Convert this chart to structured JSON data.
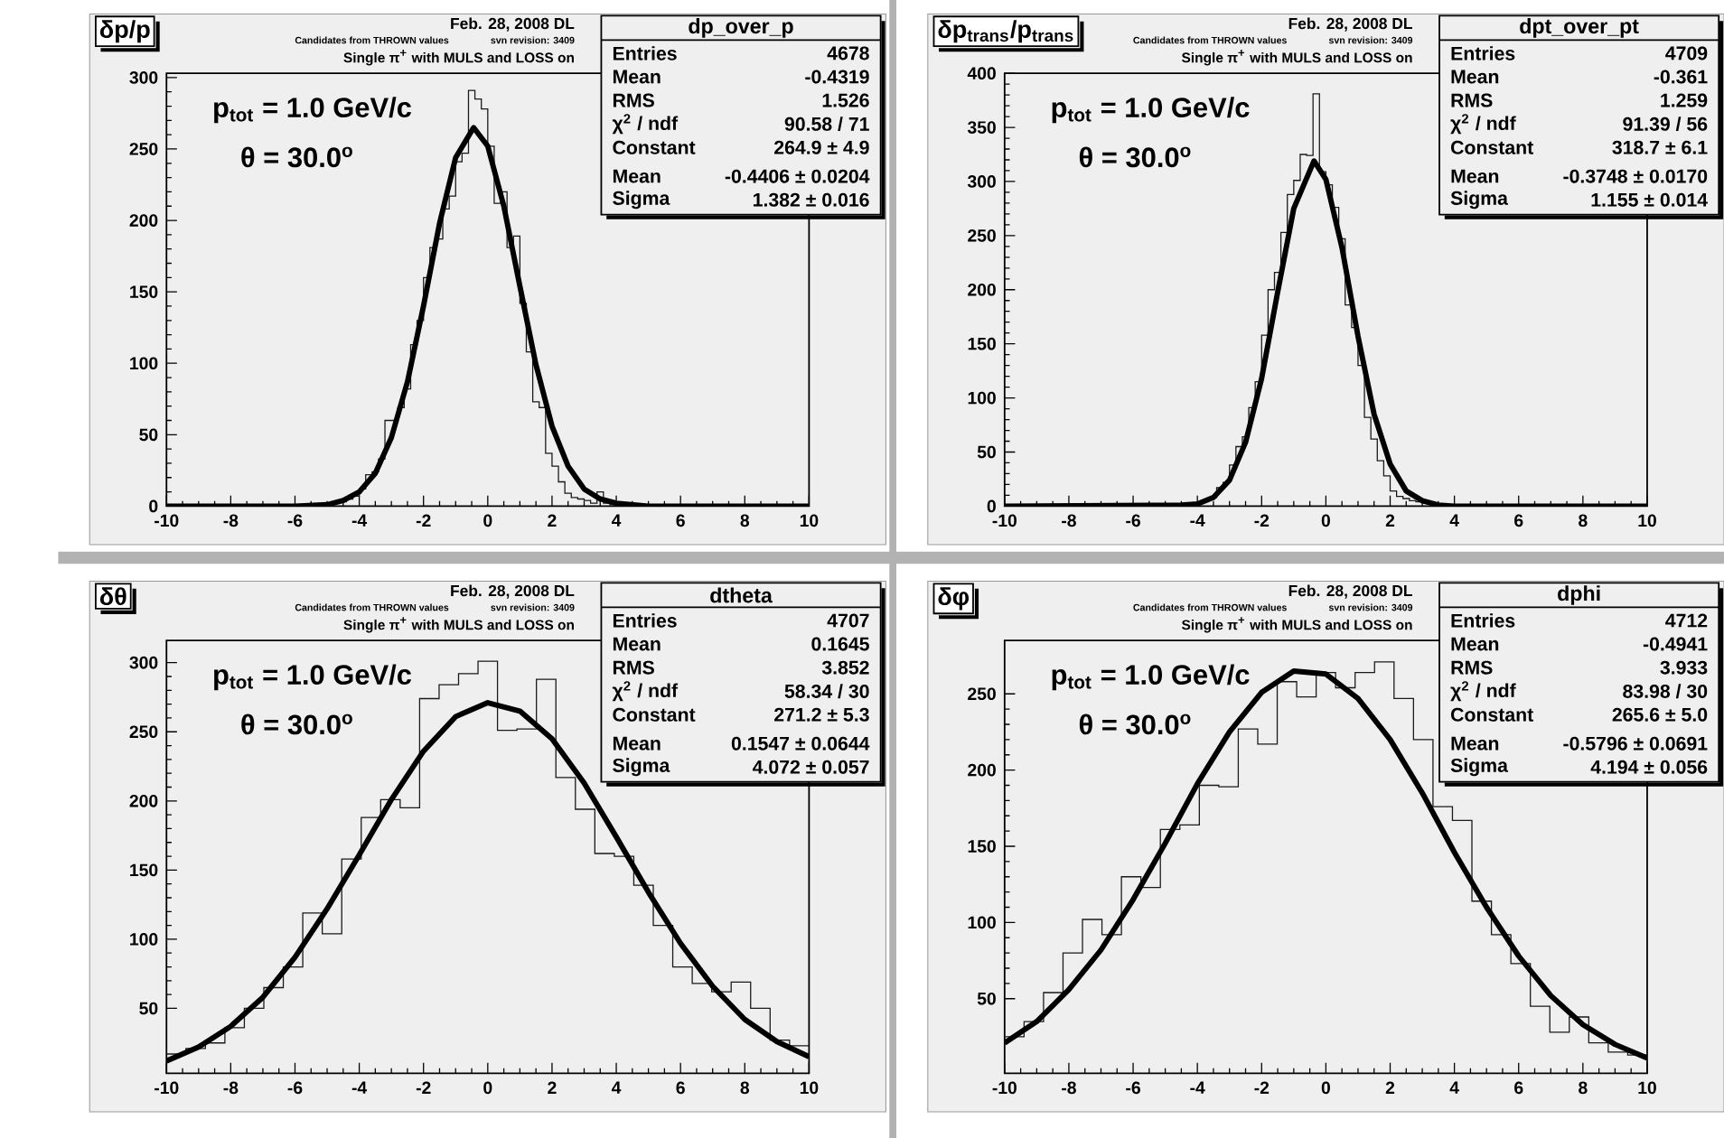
{
  "chart_data": [
    {
      "type": "histogram",
      "title": "δp/p",
      "xlim": [
        -10,
        10
      ],
      "ylim": [
        0,
        303
      ],
      "xticks": [
        -10,
        -8,
        -6,
        -4,
        -2,
        0,
        2,
        4,
        6,
        8,
        10
      ],
      "yticks": [
        0,
        50,
        100,
        150,
        200,
        250,
        300
      ],
      "series": [
        {
          "color": "#1a1a1a",
          "bins": [
            -10,
            -9.8,
            -9.6,
            -9.4,
            -9.2,
            -9,
            -8.8,
            -8.6,
            -8.4,
            -8.2,
            -8,
            -7.8,
            -7.6,
            -7.4,
            -7.2,
            -7,
            -6.8,
            -6.6,
            -6.4,
            -6.2,
            -6,
            -5.8,
            -5.6,
            -5.4,
            -5.2,
            -5,
            -4.8,
            -4.6,
            -4.4,
            -4.2,
            -4,
            -3.8,
            -3.6,
            -3.4,
            -3.2,
            -3,
            -2.8,
            -2.6,
            -2.4,
            -2.2,
            -2,
            -1.8,
            -1.6,
            -1.4,
            -1.2,
            -1,
            -0.8,
            -0.6,
            -0.4,
            -0.2,
            0,
            0.2,
            0.4,
            0.6,
            0.8,
            1,
            1.2,
            1.4,
            1.6,
            1.8,
            2,
            2.2,
            2.4,
            2.6,
            2.8,
            3,
            3.2,
            3.4,
            3.6,
            3.8,
            4,
            4.2,
            4.4,
            4.6,
            4.8,
            5,
            5.2,
            5.4,
            5.6,
            5.8,
            6,
            6.2,
            6.4,
            6.6,
            6.8,
            7,
            7.2,
            7.4,
            7.6,
            7.8,
            8,
            8.2,
            8.4,
            8.6,
            8.8,
            9,
            9.2,
            9.4,
            9.6,
            9.8,
            10
          ],
          "values": [
            0,
            0,
            0,
            0,
            0,
            0,
            0,
            0,
            1,
            0,
            0,
            0,
            0,
            0,
            1,
            0,
            0,
            0,
            0,
            0,
            1,
            0,
            0,
            1,
            1,
            2,
            2,
            3,
            5,
            7,
            12,
            22,
            24,
            33,
            60,
            60,
            69,
            82,
            113,
            130,
            160,
            181,
            187,
            208,
            217,
            241,
            247,
            291,
            285,
            278,
            252,
            212,
            220,
            181,
            189,
            142,
            108,
            73,
            69,
            37,
            28,
            17,
            9,
            6,
            5,
            4,
            2,
            10,
            2,
            1,
            1,
            0,
            1,
            1,
            0,
            0,
            1,
            0,
            0,
            0,
            0,
            0,
            1,
            1,
            0,
            0,
            0,
            0,
            0,
            0,
            1,
            0,
            1,
            0,
            0,
            0,
            0,
            0,
            0,
            0
          ]
        },
        {
          "type": "line",
          "color": "#000000",
          "x": [
            -10,
            -6,
            -5,
            -4.5,
            -4,
            -3.5,
            -3,
            -2.5,
            -2,
            -1.5,
            -1,
            -0.44,
            0,
            0.5,
            1,
            1.5,
            2,
            2.5,
            3,
            3.5,
            4,
            5,
            10
          ],
          "values": [
            0,
            0,
            1,
            4,
            10,
            23,
            48,
            87,
            140,
            198,
            244,
            265,
            252,
            210,
            154,
            99,
            56,
            28,
            12,
            5,
            2,
            0,
            0
          ]
        }
      ],
      "annotations": [
        "Feb. 28, 2008 DL",
        "Candidates from THROWN values",
        "svn revision: 3409",
        "Single π$^{+}$ with MULS and LOSS on",
        "p$_{tot}$ = 1.0 GeV/c",
        "θ = 30.0$^{o}$",
        "dp_over_p",
        "Entries",
        "4678",
        "Mean",
        "-0.4319",
        "RMS",
        "1.526",
        "χ$^{2}$ / ndf",
        "90.58 / 71",
        "Constant",
        "264.9 ± 4.9",
        "Mean",
        "-0.4406 ± 0.0204",
        "Sigma",
        "1.382 ± 0.016"
      ]
    },
    {
      "type": "histogram",
      "title": "δp$_{trans}$/p$_{trans}$",
      "xlim": [
        -10,
        10
      ],
      "ylim": [
        0,
        400
      ],
      "xticks": [
        -10,
        -8,
        -6,
        -4,
        -2,
        0,
        2,
        4,
        6,
        8,
        10
      ],
      "yticks": [
        0,
        50,
        100,
        150,
        200,
        250,
        300,
        350,
        400
      ],
      "series": [
        {
          "color": "#1a1a1a",
          "bins": [
            -10,
            -9.8,
            -9.6,
            -9.4,
            -9.2,
            -9,
            -8.8,
            -8.6,
            -8.4,
            -8.2,
            -8,
            -7.8,
            -7.6,
            -7.4,
            -7.2,
            -7,
            -6.8,
            -6.6,
            -6.4,
            -6.2,
            -6,
            -5.8,
            -5.6,
            -5.4,
            -5.2,
            -5,
            -4.8,
            -4.6,
            -4.4,
            -4.2,
            -4,
            -3.8,
            -3.6,
            -3.4,
            -3.2,
            -3,
            -2.8,
            -2.6,
            -2.4,
            -2.2,
            -2,
            -1.8,
            -1.6,
            -1.4,
            -1.2,
            -1,
            -0.8,
            -0.6,
            -0.4,
            -0.2,
            0,
            0.2,
            0.4,
            0.6,
            0.8,
            1,
            1.2,
            1.4,
            1.6,
            1.8,
            2,
            2.2,
            2.4,
            2.6,
            2.8,
            3,
            3.2,
            3.4,
            3.6,
            3.8,
            4,
            4.2,
            4.4,
            4.6,
            4.8,
            5,
            5.2,
            5.4,
            5.6,
            5.8,
            6,
            6.2,
            6.4,
            6.6,
            6.8,
            7,
            7.2,
            7.4,
            7.6,
            7.8,
            8,
            8.2,
            8.4,
            8.6,
            8.8,
            9,
            9.2,
            9.4,
            9.6,
            9.8,
            10
          ],
          "values": [
            0,
            0,
            0,
            0,
            0,
            0,
            0,
            0,
            0,
            0,
            0,
            0,
            0,
            0,
            0,
            0,
            0,
            0,
            0,
            0,
            0,
            0,
            0,
            0,
            0,
            1,
            0,
            1,
            2,
            2,
            4,
            5,
            8,
            17,
            22,
            38,
            55,
            64,
            91,
            115,
            158,
            200,
            216,
            253,
            288,
            301,
            325,
            324,
            381,
            309,
            297,
            276,
            247,
            186,
            165,
            130,
            82,
            62,
            42,
            28,
            14,
            9,
            7,
            5,
            4,
            3,
            2,
            1,
            1,
            0,
            1,
            0,
            0,
            0,
            0,
            1,
            0,
            0,
            0,
            0,
            0,
            0,
            0,
            0,
            0,
            0,
            0,
            0,
            0,
            0,
            0,
            0,
            0,
            0,
            0,
            0,
            0,
            0,
            0,
            0
          ]
        },
        {
          "type": "line",
          "color": "#000000",
          "x": [
            -10,
            -4.5,
            -4,
            -3.5,
            -3,
            -2.5,
            -2,
            -1.5,
            -1,
            -0.37,
            0,
            0.5,
            1,
            1.5,
            2,
            2.5,
            3,
            3.5,
            4,
            10
          ],
          "values": [
            0,
            1,
            2,
            8,
            24,
            59,
            118,
            198,
            275,
            319,
            302,
            239,
            157,
            85,
            39,
            14,
            5,
            1,
            0,
            0
          ]
        }
      ],
      "annotations": [
        "Feb. 28, 2008 DL",
        "Candidates from THROWN values",
        "svn revision: 3409",
        "Single π$^{+}$ with MULS and LOSS on",
        "p$_{tot}$ = 1.0 GeV/c",
        "θ = 30.0$^{o}$",
        "dpt_over_pt",
        "Entries",
        "4709",
        "Mean",
        "-0.361",
        "RMS",
        "1.259",
        "χ$^{2}$ / ndf",
        "91.39 / 56",
        "Constant",
        "318.7 ± 6.1",
        "Mean",
        "-0.3748 ± 0.0170",
        "Sigma",
        "1.155 ± 0.014"
      ]
    },
    {
      "type": "histogram",
      "title": "δθ",
      "xlim": [
        -10,
        10
      ],
      "ylim": [
        3,
        316
      ],
      "xticks": [
        -10,
        -8,
        -6,
        -4,
        -2,
        0,
        2,
        4,
        6,
        8,
        10
      ],
      "yticks": [
        50,
        100,
        150,
        200,
        250,
        300
      ],
      "series": [
        {
          "color": "#1a1a1a",
          "bins": [
            -10,
            -9.394,
            -8.788,
            -8.182,
            -7.576,
            -6.97,
            -6.364,
            -5.758,
            -5.152,
            -4.545,
            -3.939,
            -3.333,
            -2.727,
            -2.121,
            -1.515,
            -0.909,
            -0.303,
            0.303,
            0.909,
            1.515,
            2.121,
            2.727,
            3.333,
            3.939,
            4.545,
            5.152,
            5.758,
            6.364,
            6.97,
            7.576,
            8.182,
            8.788,
            9.394,
            10
          ],
          "values": [
            17,
            21,
            25,
            36,
            50,
            65,
            80,
            119,
            104,
            158,
            188,
            201,
            195,
            274,
            284,
            292,
            301,
            251,
            252,
            288,
            217,
            194,
            162,
            160,
            139,
            110,
            80,
            68,
            62,
            69,
            50,
            27,
            23
          ]
        },
        {
          "type": "line",
          "color": "#000000",
          "x": [
            -10,
            -9,
            -8,
            -7,
            -6,
            -5,
            -4,
            -3,
            -2,
            -1,
            0,
            1,
            2,
            3,
            4,
            5,
            6,
            7,
            8,
            9,
            10
          ],
          "values": [
            12,
            22,
            37,
            58,
            87,
            122,
            161,
            201,
            236,
            261,
            271,
            265,
            245,
            213,
            174,
            134,
            97,
            66,
            42,
            26,
            15
          ]
        }
      ],
      "annotations": [
        "Feb. 28, 2008 DL",
        "Candidates from THROWN values",
        "svn revision: 3409",
        "Single π$^{+}$ with MULS and LOSS on",
        "p$_{tot}$ = 1.0 GeV/c",
        "θ = 30.0$^{o}$",
        "dtheta",
        "Entries",
        "4707",
        "Mean",
        "0.1645",
        "RMS",
        "3.852",
        "χ$^{2}$ / ndf",
        "58.34 / 30",
        "Constant",
        "271.2 ± 5.3",
        "Mean",
        "0.1547 ± 0.0644",
        "Sigma",
        "4.072 ± 0.057"
      ]
    },
    {
      "type": "histogram",
      "title": "δφ",
      "xlim": [
        -10,
        10
      ],
      "ylim": [
        1,
        285
      ],
      "xticks": [
        -10,
        -8,
        -6,
        -4,
        -2,
        0,
        2,
        4,
        6,
        8,
        10
      ],
      "yticks": [
        50,
        100,
        150,
        200,
        250
      ],
      "series": [
        {
          "color": "#1a1a1a",
          "bins": [
            -10,
            -9.394,
            -8.788,
            -8.182,
            -7.576,
            -6.97,
            -6.364,
            -5.758,
            -5.152,
            -4.545,
            -3.939,
            -3.333,
            -2.727,
            -2.121,
            -1.515,
            -0.909,
            -0.303,
            0.303,
            0.909,
            1.515,
            2.121,
            2.727,
            3.333,
            3.939,
            4.545,
            5.152,
            5.758,
            6.364,
            6.97,
            7.576,
            8.182,
            8.788,
            9.394,
            10
          ],
          "values": [
            25,
            35,
            54,
            80,
            102,
            92,
            130,
            123,
            161,
            164,
            190,
            189,
            227,
            217,
            258,
            248,
            264,
            254,
            264,
            271,
            247,
            220,
            176,
            167,
            114,
            92,
            73,
            45,
            28,
            38,
            21,
            15,
            13
          ]
        },
        {
          "type": "line",
          "color": "#000000",
          "x": [
            -10,
            -9,
            -8,
            -7,
            -6,
            -5,
            -4,
            -3,
            -2,
            -1,
            0,
            1,
            2,
            3,
            4,
            5,
            6,
            7,
            8,
            9,
            10
          ],
          "values": [
            21,
            35,
            56,
            82,
            115,
            152,
            191,
            225,
            251,
            265,
            263,
            247,
            220,
            185,
            146,
            110,
            78,
            52,
            33,
            20,
            11
          ]
        }
      ],
      "annotations": [
        "Feb. 28, 2008 DL",
        "Candidates from THROWN values",
        "svn revision: 3409",
        "Single π$^{+}$ with MULS and LOSS on",
        "p$_{tot}$ = 1.0 GeV/c",
        "θ = 30.0$^{o}$",
        "dphi",
        "Entries",
        "4712",
        "Mean",
        "-0.4941",
        "RMS",
        "3.933",
        "χ$^{2}$ / ndf",
        "83.98 / 30",
        "Constant",
        "265.6 ± 5.0",
        "Mean",
        "-0.5796 ± 0.0691",
        "Sigma",
        "4.194 ± 0.056"
      ]
    }
  ]
}
